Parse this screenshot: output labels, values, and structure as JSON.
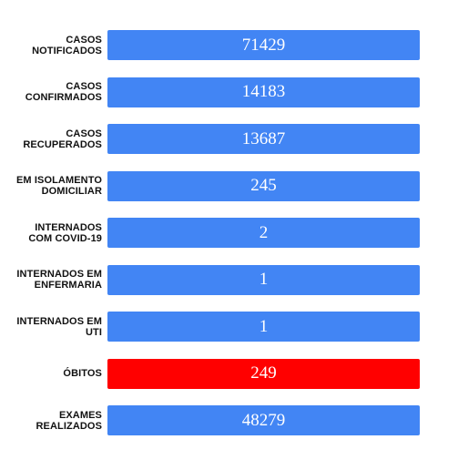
{
  "stats": {
    "colors": {
      "default": "#4285f4",
      "danger": "#ff0000"
    },
    "rows": [
      {
        "label": "CASOS\nNOTIFICADOS",
        "value": "71429"
      },
      {
        "label": "CASOS\nCONFIRMADOS",
        "value": "14183"
      },
      {
        "label": "CASOS\nRECUPERADOS",
        "value": "13687"
      },
      {
        "label": "EM ISOLAMENTO\nDOMICILIAR",
        "value": "245"
      },
      {
        "label": "INTERNADOS\nCOM COVID-19",
        "value": "2"
      },
      {
        "label": "INTERNADOS EM\nENFERMARIA",
        "value": "1"
      },
      {
        "label": "INTERNADOS EM\nUTI",
        "value": "1"
      },
      {
        "label": "ÓBITOS",
        "value": "249"
      },
      {
        "label": "EXAMES\nREALIZADOS",
        "value": "48279"
      }
    ]
  }
}
